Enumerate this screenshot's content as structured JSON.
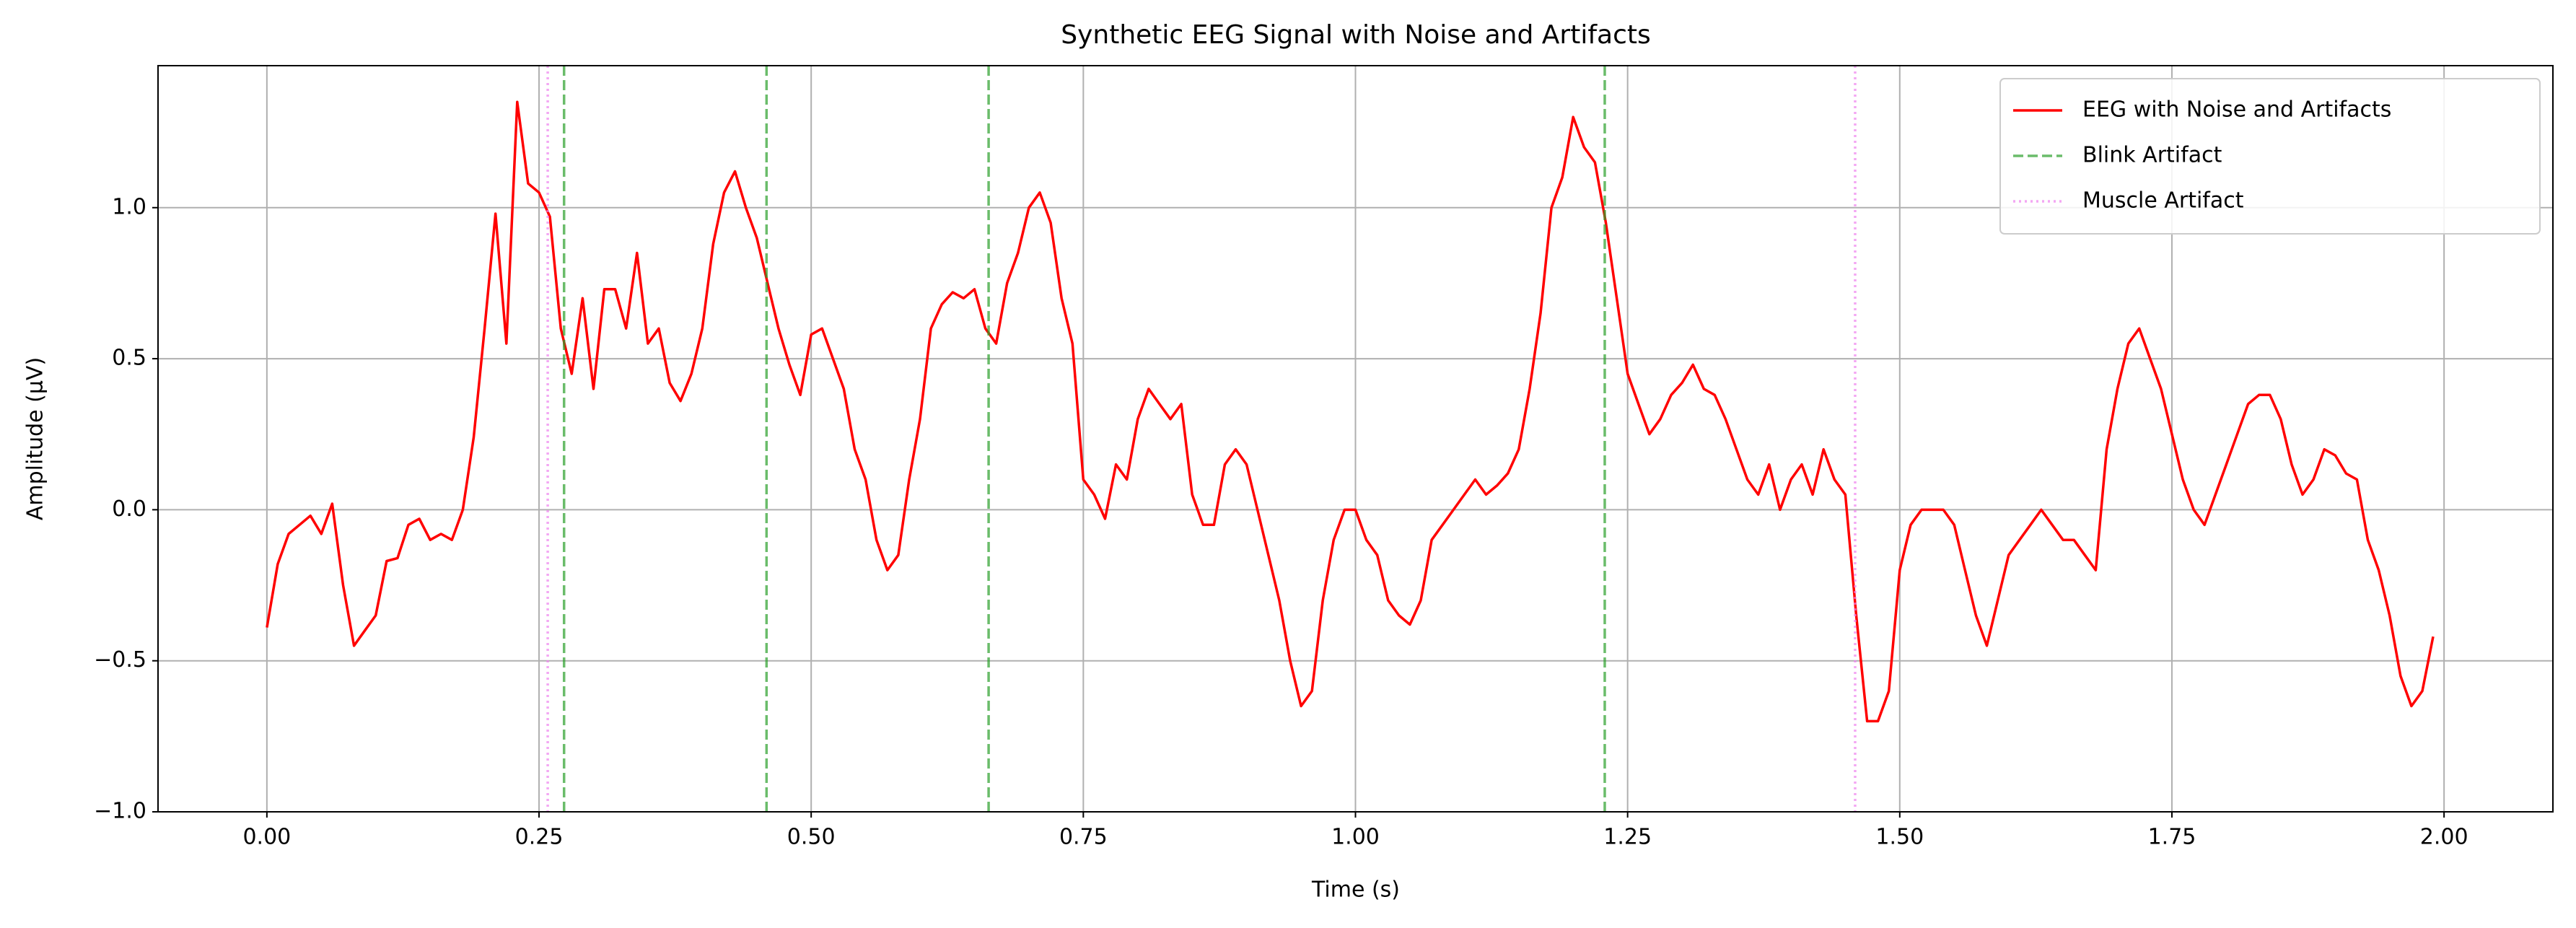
{
  "chart_data": {
    "type": "line",
    "title": "Synthetic EEG Signal with Noise and Artifacts",
    "xlabel": "Time (s)",
    "ylabel": "Amplitude (µV)",
    "x": [
      0.0,
      0.01,
      0.02,
      0.03,
      0.04,
      0.05,
      0.06,
      0.07,
      0.08,
      0.09,
      0.1,
      0.11,
      0.12,
      0.13,
      0.14,
      0.15,
      0.16,
      0.17,
      0.18,
      0.19,
      0.2,
      0.21,
      0.22,
      0.23,
      0.24,
      0.25,
      0.26,
      0.27,
      0.28,
      0.29,
      0.3,
      0.31,
      0.32,
      0.33,
      0.34,
      0.35,
      0.36,
      0.37,
      0.38,
      0.39,
      0.4,
      0.41,
      0.42,
      0.43,
      0.44,
      0.45,
      0.46,
      0.47,
      0.48,
      0.49,
      0.5,
      0.51,
      0.52,
      0.53,
      0.54,
      0.55,
      0.56,
      0.57,
      0.58,
      0.59,
      0.6,
      0.61,
      0.62,
      0.63,
      0.64,
      0.65,
      0.66,
      0.67,
      0.68,
      0.69,
      0.7,
      0.71,
      0.72,
      0.73,
      0.74,
      0.75,
      0.76,
      0.77,
      0.78,
      0.79,
      0.8,
      0.81,
      0.82,
      0.83,
      0.84,
      0.85,
      0.86,
      0.87,
      0.88,
      0.89,
      0.9,
      0.91,
      0.92,
      0.93,
      0.94,
      0.95,
      0.96,
      0.97,
      0.98,
      0.99,
      1.0,
      1.01,
      1.02,
      1.03,
      1.04,
      1.05,
      1.06,
      1.07,
      1.08,
      1.09,
      1.1,
      1.11,
      1.12,
      1.13,
      1.14,
      1.15,
      1.16,
      1.17,
      1.18,
      1.19,
      1.2,
      1.21,
      1.22,
      1.23,
      1.24,
      1.25,
      1.26,
      1.27,
      1.28,
      1.29,
      1.3,
      1.31,
      1.32,
      1.33,
      1.34,
      1.35,
      1.36,
      1.37,
      1.38,
      1.39,
      1.4,
      1.41,
      1.42,
      1.43,
      1.44,
      1.45,
      1.46,
      1.47,
      1.48,
      1.49,
      1.5,
      1.51,
      1.52,
      1.53,
      1.54,
      1.55,
      1.56,
      1.57,
      1.58,
      1.59,
      1.6,
      1.61,
      1.62,
      1.63,
      1.64,
      1.65,
      1.66,
      1.67,
      1.68,
      1.69,
      1.7,
      1.71,
      1.72,
      1.73,
      1.74,
      1.75,
      1.76,
      1.77,
      1.78,
      1.79,
      1.8,
      1.81,
      1.82,
      1.83,
      1.84,
      1.85,
      1.86,
      1.87,
      1.88,
      1.89,
      1.9,
      1.91,
      1.92,
      1.93,
      1.94,
      1.95,
      1.96,
      1.97,
      1.98,
      1.99
    ],
    "series": [
      {
        "name": "EEG with Noise and Artifacts",
        "color": "#ff0000",
        "values": [
          -0.39,
          -0.18,
          -0.08,
          -0.05,
          -0.02,
          -0.08,
          0.02,
          -0.25,
          -0.45,
          -0.4,
          -0.35,
          -0.17,
          -0.16,
          -0.05,
          -0.03,
          -0.1,
          -0.08,
          -0.1,
          0.0,
          0.24,
          0.6,
          0.98,
          0.55,
          1.35,
          1.08,
          1.05,
          0.97,
          0.6,
          0.45,
          0.7,
          0.4,
          0.73,
          0.73,
          0.6,
          0.85,
          0.55,
          0.6,
          0.42,
          0.36,
          0.45,
          0.6,
          0.88,
          1.05,
          1.12,
          1.0,
          0.9,
          0.75,
          0.6,
          0.48,
          0.38,
          0.58,
          0.6,
          0.5,
          0.4,
          0.2,
          0.1,
          -0.1,
          -0.2,
          -0.15,
          0.1,
          0.3,
          0.6,
          0.68,
          0.72,
          0.7,
          0.73,
          0.6,
          0.55,
          0.75,
          0.85,
          1.0,
          1.05,
          0.95,
          0.7,
          0.55,
          0.1,
          0.05,
          -0.03,
          0.15,
          0.1,
          0.3,
          0.4,
          0.35,
          0.3,
          0.35,
          0.05,
          -0.05,
          -0.05,
          0.15,
          0.2,
          0.15,
          0.0,
          -0.15,
          -0.3,
          -0.5,
          -0.65,
          -0.6,
          -0.3,
          -0.1,
          0.0,
          0.0,
          -0.1,
          -0.15,
          -0.3,
          -0.35,
          -0.38,
          -0.3,
          -0.1,
          -0.05,
          0.0,
          0.05,
          0.1,
          0.05,
          0.08,
          0.12,
          0.2,
          0.4,
          0.65,
          1.0,
          1.1,
          1.3,
          1.2,
          1.15,
          0.95,
          0.7,
          0.45,
          0.35,
          0.25,
          0.3,
          0.38,
          0.42,
          0.48,
          0.4,
          0.38,
          0.3,
          0.2,
          0.1,
          0.05,
          0.15,
          0.0,
          0.1,
          0.15,
          0.05,
          0.2,
          0.1,
          0.05,
          -0.35,
          -0.7,
          -0.7,
          -0.6,
          -0.2,
          -0.05,
          0.0,
          0.0,
          0.0,
          -0.05,
          -0.2,
          -0.35,
          -0.45,
          -0.3,
          -0.15,
          -0.1,
          -0.05,
          0.0,
          -0.05,
          -0.1,
          -0.1,
          -0.15,
          -0.2,
          0.2,
          0.4,
          0.55,
          0.6,
          0.5,
          0.4,
          0.25,
          0.1,
          0.0,
          -0.05,
          0.05,
          0.15,
          0.25,
          0.35,
          0.38,
          0.38,
          0.3,
          0.15,
          0.05,
          0.1,
          0.2,
          0.18,
          0.12,
          0.1,
          -0.1,
          -0.2,
          -0.35,
          -0.55,
          -0.65,
          -0.6,
          -0.42
        ]
      }
    ],
    "vlines": [
      {
        "name": "Blink Artifact",
        "color": "#2ca02c",
        "style": "dashed",
        "x": [
          0.273,
          0.459,
          0.663,
          1.229
        ]
      },
      {
        "name": "Muscle Artifact",
        "color": "#ee82ee",
        "style": "dotted",
        "x": [
          0.258,
          1.459
        ]
      }
    ],
    "xlim": [
      -0.1,
      2.1
    ],
    "ylim": [
      -1.0,
      1.47
    ],
    "xticks": [
      {
        "value": 0,
        "label": "0.00"
      },
      {
        "value": 0.25,
        "label": "0.25"
      },
      {
        "value": 0.5,
        "label": "0.50"
      },
      {
        "value": 0.75,
        "label": "0.75"
      },
      {
        "value": 1,
        "label": "1.00"
      },
      {
        "value": 1.25,
        "label": "1.25"
      },
      {
        "value": 1.5,
        "label": "1.50"
      },
      {
        "value": 1.75,
        "label": "1.75"
      },
      {
        "value": 2,
        "label": "2.00"
      }
    ],
    "yticks": [
      {
        "value": -1,
        "label": "−1.0"
      },
      {
        "value": -0.5,
        "label": "−0.5"
      },
      {
        "value": 0,
        "label": "0.0"
      },
      {
        "value": 0.5,
        "label": "0.5"
      },
      {
        "value": 1,
        "label": "1.0"
      }
    ],
    "grid": true,
    "legend": "upper right"
  }
}
